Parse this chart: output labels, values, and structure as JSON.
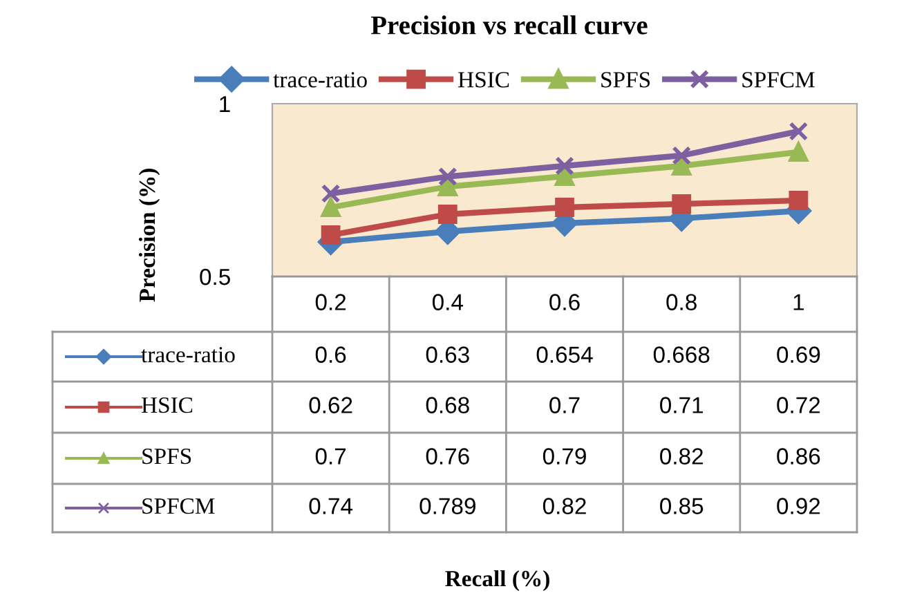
{
  "chart_data": {
    "type": "line",
    "title": "Precision vs recall curve",
    "annotations": [
      "Recall (%)"
    ],
    "ylabel": "Precision (%)",
    "categories": [
      "0.2",
      "0.4",
      "0.6",
      "0.8",
      "1"
    ],
    "series": [
      {
        "name": "trace-ratio",
        "color": "#4a7ebb",
        "marker": "diamond",
        "values": [
          0.6,
          0.63,
          0.654,
          0.668,
          0.69
        ]
      },
      {
        "name": "HSIC",
        "color": "#be4b48",
        "marker": "square",
        "values": [
          0.62,
          0.68,
          0.7,
          0.71,
          0.72
        ]
      },
      {
        "name": "SPFS",
        "color": "#98b954",
        "marker": "triangle",
        "values": [
          0.7,
          0.76,
          0.79,
          0.82,
          0.86
        ]
      },
      {
        "name": "SPFCM",
        "color": "#7d60a0",
        "marker": "cross",
        "values": [
          0.74,
          0.789,
          0.82,
          0.85,
          0.92
        ]
      }
    ],
    "ylim": [
      0.5,
      1
    ],
    "yticks": [
      0.5,
      1
    ],
    "legend": "top",
    "tick_labels": "y",
    "data_labels": true,
    "line_style": "solid"
  }
}
